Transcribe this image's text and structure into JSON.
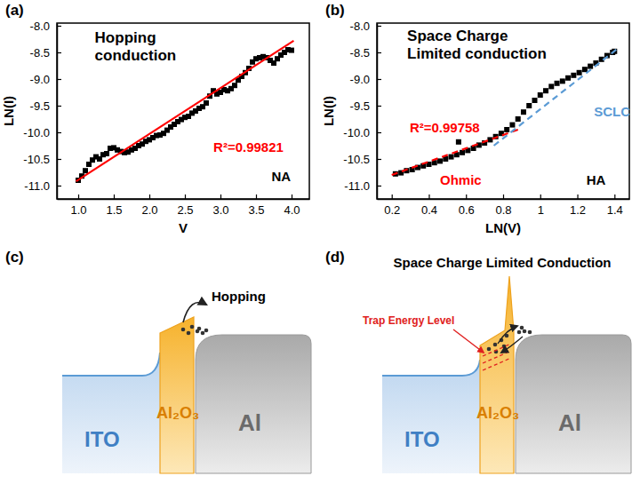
{
  "chart_data": [
    {
      "type": "scatter",
      "panel_label": "(a)",
      "title": "Hopping conduction",
      "x_label": "V",
      "y_label": "LN(I)",
      "xlim": [
        0.7,
        4.25
      ],
      "xticks": [
        {
          "value": 1,
          "label": "1.0"
        },
        {
          "value": 1.5,
          "label": "1.5"
        },
        {
          "value": 2,
          "label": "2.0"
        },
        {
          "value": 2.5,
          "label": "2.5"
        },
        {
          "value": 3,
          "label": "3.0"
        },
        {
          "value": 3.5,
          "label": "3.5"
        },
        {
          "value": 4,
          "label": "4.0"
        }
      ],
      "ylim": [
        -11.25,
        -7.95
      ],
      "yticks": [
        {
          "value": -11,
          "label": "-11.0"
        },
        {
          "value": -10.5,
          "label": "-10.5"
        },
        {
          "value": -10,
          "label": "-10.0"
        },
        {
          "value": -9.5,
          "label": "-9.5"
        },
        {
          "value": -9,
          "label": "-9.0"
        },
        {
          "value": -8.5,
          "label": "-8.5"
        },
        {
          "value": -8,
          "label": "-8.0"
        }
      ],
      "series": [
        {
          "type": "scatter",
          "marker": "square",
          "color": "#000000",
          "x": [
            1.0,
            1.05,
            1.1,
            1.15,
            1.2,
            1.25,
            1.3,
            1.35,
            1.4,
            1.45,
            1.5,
            1.55,
            1.6,
            1.65,
            1.7,
            1.75,
            1.8,
            1.85,
            1.9,
            1.95,
            2.0,
            2.05,
            2.1,
            2.15,
            2.2,
            2.25,
            2.3,
            2.35,
            2.4,
            2.45,
            2.5,
            2.55,
            2.6,
            2.65,
            2.7,
            2.75,
            2.8,
            2.85,
            2.9,
            2.95,
            3.0,
            3.05,
            3.1,
            3.15,
            3.2,
            3.25,
            3.3,
            3.35,
            3.4,
            3.45,
            3.5,
            3.55,
            3.6,
            3.65,
            3.7,
            3.75,
            3.8,
            3.85,
            3.9,
            3.95,
            4.0
          ],
          "values": [
            -10.9,
            -10.82,
            -10.72,
            -10.6,
            -10.52,
            -10.46,
            -10.5,
            -10.42,
            -10.4,
            -10.3,
            -10.29,
            -10.33,
            -10.36,
            -10.38,
            -10.37,
            -10.33,
            -10.3,
            -10.25,
            -10.22,
            -10.17,
            -10.14,
            -10.1,
            -10.06,
            -10.05,
            -10.02,
            -9.96,
            -9.9,
            -9.85,
            -9.8,
            -9.76,
            -9.72,
            -9.7,
            -9.64,
            -9.6,
            -9.55,
            -9.52,
            -9.45,
            -9.32,
            -9.22,
            -9.28,
            -9.25,
            -9.2,
            -9.22,
            -9.18,
            -9.12,
            -9.02,
            -8.95,
            -8.88,
            -8.8,
            -8.68,
            -8.62,
            -8.6,
            -8.58,
            -8.6,
            -8.65,
            -8.7,
            -8.62,
            -8.55,
            -8.5,
            -8.45,
            -8.46
          ]
        },
        {
          "type": "line",
          "line_style": "solid",
          "color": "#ff0000",
          "x": [
            0.97,
            4.03
          ],
          "values": [
            -10.92,
            -8.28
          ]
        }
      ],
      "annotations": [
        {
          "text": "R²=0.99821",
          "color": "#ff0000"
        },
        {
          "text": "NA",
          "color": "#000000"
        }
      ]
    },
    {
      "type": "scatter",
      "panel_label": "(b)",
      "title": "Space Charge Limited conduction",
      "x_label": "LN(V)",
      "y_label": "LN(I)",
      "xlim": [
        0.12,
        1.48
      ],
      "xticks": [
        0.2,
        0.4,
        0.6,
        0.8,
        1.0,
        1.2,
        1.4
      ],
      "ylim": [
        -11.25,
        -7.95
      ],
      "yticks": [
        {
          "value": -11,
          "label": "-11.0"
        },
        {
          "value": -10.5,
          "label": "-10.5"
        },
        {
          "value": -10,
          "label": "-10.0"
        },
        {
          "value": -9.5,
          "label": "-9.5"
        },
        {
          "value": -9,
          "label": "-9.0"
        },
        {
          "value": -8.5,
          "label": "-8.5"
        },
        {
          "value": -8,
          "label": "-8.0"
        }
      ],
      "series": [
        {
          "type": "scatter",
          "marker": "square",
          "color": "#000000",
          "x": [
            0.22,
            0.25,
            0.28,
            0.31,
            0.34,
            0.37,
            0.4,
            0.43,
            0.46,
            0.49,
            0.52,
            0.55,
            0.56,
            0.58,
            0.61,
            0.64,
            0.67,
            0.7,
            0.73,
            0.76,
            0.79,
            0.82,
            0.85,
            0.88,
            0.91,
            0.94,
            0.97,
            1.0,
            1.03,
            1.06,
            1.09,
            1.12,
            1.15,
            1.18,
            1.21,
            1.24,
            1.27,
            1.3,
            1.33,
            1.36,
            1.39,
            1.4
          ],
          "values": [
            -10.78,
            -10.76,
            -10.72,
            -10.7,
            -10.66,
            -10.63,
            -10.6,
            -10.57,
            -10.54,
            -10.5,
            -10.46,
            -10.42,
            -10.18,
            -10.38,
            -10.34,
            -10.3,
            -10.24,
            -10.2,
            -10.14,
            -10.08,
            -10.02,
            -9.95,
            -9.86,
            -9.75,
            -9.62,
            -9.5,
            -9.4,
            -9.3,
            -9.22,
            -9.14,
            -9.08,
            -9.04,
            -8.98,
            -8.93,
            -8.88,
            -8.82,
            -8.76,
            -8.7,
            -8.63,
            -8.56,
            -8.5,
            -8.48
          ]
        },
        {
          "type": "line",
          "line_style": "dashed",
          "color": "#ff0000",
          "x": [
            0.2,
            0.88
          ],
          "values": [
            -10.8,
            -9.95
          ]
        },
        {
          "type": "line",
          "line_style": "dashed",
          "color": "#5b9bd5",
          "x": [
            0.75,
            1.42
          ],
          "values": [
            -10.25,
            -8.42
          ]
        }
      ],
      "annotations": [
        {
          "text": "R²=0.99758",
          "color": "#ff0000"
        },
        {
          "text": "Ohmic",
          "color": "#ff0000"
        },
        {
          "text": "SCLC",
          "color": "#5b9bd5"
        },
        {
          "text": "HA",
          "color": "#000000"
        }
      ]
    }
  ],
  "diagrams": [
    {
      "panel_label": "(c)",
      "title": "Hopping",
      "layers": [
        "ITO",
        "Al₂O₃",
        "Al"
      ]
    },
    {
      "panel_label": "(d)",
      "title": "Space Charge Limited Conduction",
      "trap_label": "Trap Energy Level",
      "layers": [
        "ITO",
        "Al₂O₃",
        "Al"
      ]
    }
  ]
}
